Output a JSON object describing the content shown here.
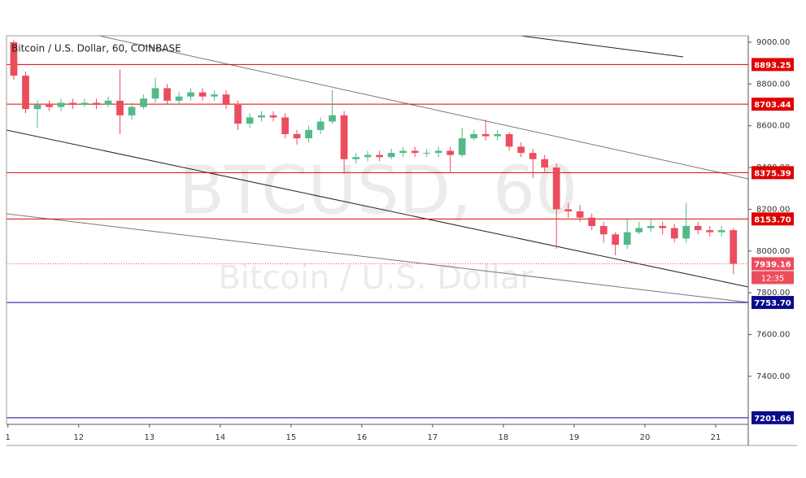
{
  "chart_data": {
    "type": "candlestick",
    "title": "Bitcoin / U.S. Dollar, 60, COINBASE",
    "watermark": "BTCUSD, 60",
    "watermark_subtitle": "Bitcoin / U.S. Dollar",
    "countdown": "12:35",
    "up_color": "#53b987",
    "down_color": "#eb4d5c",
    "xlim": [
      10.98,
      21.46
    ],
    "xticks": [
      {
        "value": 11,
        "label": "1"
      },
      12,
      13,
      14,
      15,
      16,
      17,
      18,
      19,
      20,
      21
    ],
    "ylim": [
      7170,
      9031
    ],
    "yticks": [
      {
        "value": 9000,
        "label": "9000.00"
      },
      {
        "value": 8800,
        "label": "8800.00"
      },
      {
        "value": 8600,
        "label": "8600.00"
      },
      {
        "value": 8400,
        "label": "8400.00"
      },
      {
        "value": 8200,
        "label": "8200.00"
      },
      {
        "value": 8000,
        "label": "8000.00"
      },
      {
        "value": 7800,
        "label": "7800.00"
      },
      {
        "value": 7600,
        "label": "7600.00"
      },
      {
        "value": 7400,
        "label": "7400.00"
      }
    ],
    "levels": [
      {
        "value": 8893.25,
        "color": "#e00000"
      },
      {
        "value": 8703.44,
        "color": "#e00000"
      },
      {
        "value": 8375.39,
        "color": "#e00000"
      },
      {
        "value": 8153.7,
        "label": "8153.70",
        "color": "#e00000"
      },
      {
        "value": 7753.7,
        "label": "7753.70",
        "color": "#0a0a8c"
      },
      {
        "value": 7201.66,
        "color": "#0a0a8c"
      }
    ],
    "x": [
      11.083,
      11.25,
      11.417,
      11.583,
      11.75,
      11.917,
      12.083,
      12.25,
      12.417,
      12.583,
      12.75,
      12.917,
      13.083,
      13.25,
      13.417,
      13.583,
      13.75,
      13.917,
      14.083,
      14.25,
      14.417,
      14.583,
      14.75,
      14.917,
      15.083,
      15.25,
      15.417,
      15.583,
      15.75,
      15.917,
      16.083,
      16.25,
      16.417,
      16.583,
      16.75,
      16.917,
      17.083,
      17.25,
      17.417,
      17.583,
      17.75,
      17.917,
      18.083,
      18.25,
      18.417,
      18.583,
      18.75,
      18.917,
      19.083,
      19.25,
      19.417,
      19.583,
      19.75,
      19.917,
      20.083,
      20.25,
      20.417,
      20.583,
      20.75,
      20.917,
      21.083,
      21.25
    ],
    "open": [
      9000,
      8840,
      8680,
      8700,
      8690,
      8710,
      8700,
      8710,
      8700,
      8720,
      8650,
      8690,
      8730,
      8780,
      8720,
      8740,
      8760,
      8740,
      8750,
      8700,
      8610,
      8640,
      8650,
      8640,
      8560,
      8540,
      8580,
      8620,
      8650,
      8440,
      8450,
      8460,
      8450,
      8470,
      8480,
      8470,
      8470,
      8480,
      8460,
      8540,
      8560,
      8550,
      8560,
      8500,
      8470,
      8440,
      8400,
      8200,
      8190,
      8160,
      8120,
      8080,
      8030,
      8090,
      8110,
      8120,
      8110,
      8060,
      8120,
      8100,
      8090,
      8100
    ],
    "high": [
      9010,
      8860,
      8720,
      8720,
      8730,
      8730,
      8730,
      8730,
      8740,
      8870,
      8710,
      8750,
      8830,
      8800,
      8760,
      8780,
      8780,
      8770,
      8770,
      8720,
      8660,
      8670,
      8670,
      8660,
      8580,
      8600,
      8640,
      8770,
      8670,
      8470,
      8480,
      8480,
      8490,
      8500,
      8500,
      8490,
      8500,
      8500,
      8590,
      8580,
      8630,
      8580,
      8570,
      8520,
      8490,
      8460,
      8420,
      8230,
      8220,
      8180,
      8140,
      8090,
      8150,
      8140,
      8150,
      8140,
      8130,
      8230,
      8140,
      8120,
      8120,
      8110
    ],
    "low": [
      8820,
      8660,
      8590,
      8670,
      8670,
      8680,
      8690,
      8680,
      8690,
      8560,
      8630,
      8680,
      8710,
      8700,
      8700,
      8720,
      8720,
      8720,
      8680,
      8580,
      8590,
      8620,
      8620,
      8540,
      8510,
      8520,
      8560,
      8610,
      8370,
      8420,
      8430,
      8430,
      8440,
      8450,
      8450,
      8450,
      8450,
      8380,
      8450,
      8530,
      8530,
      8530,
      8480,
      8450,
      8350,
      8380,
      8010,
      8160,
      8140,
      8100,
      8040,
      7980,
      8010,
      8080,
      8090,
      8080,
      8040,
      8040,
      8080,
      8070,
      8070,
      7890
    ],
    "close": [
      8840,
      8680,
      8700,
      8690,
      8710,
      8700,
      8710,
      8700,
      8720,
      8650,
      8690,
      8730,
      8780,
      8720,
      8740,
      8760,
      8740,
      8750,
      8700,
      8610,
      8640,
      8650,
      8640,
      8560,
      8540,
      8580,
      8620,
      8650,
      8440,
      8450,
      8460,
      8450,
      8470,
      8480,
      8470,
      8470,
      8480,
      8460,
      8540,
      8560,
      8550,
      8560,
      8500,
      8470,
      8440,
      8400,
      8200,
      8190,
      8160,
      8120,
      8080,
      8030,
      8090,
      8110,
      8120,
      8110,
      8060,
      8120,
      8100,
      8090,
      8100,
      7939.16
    ]
  }
}
